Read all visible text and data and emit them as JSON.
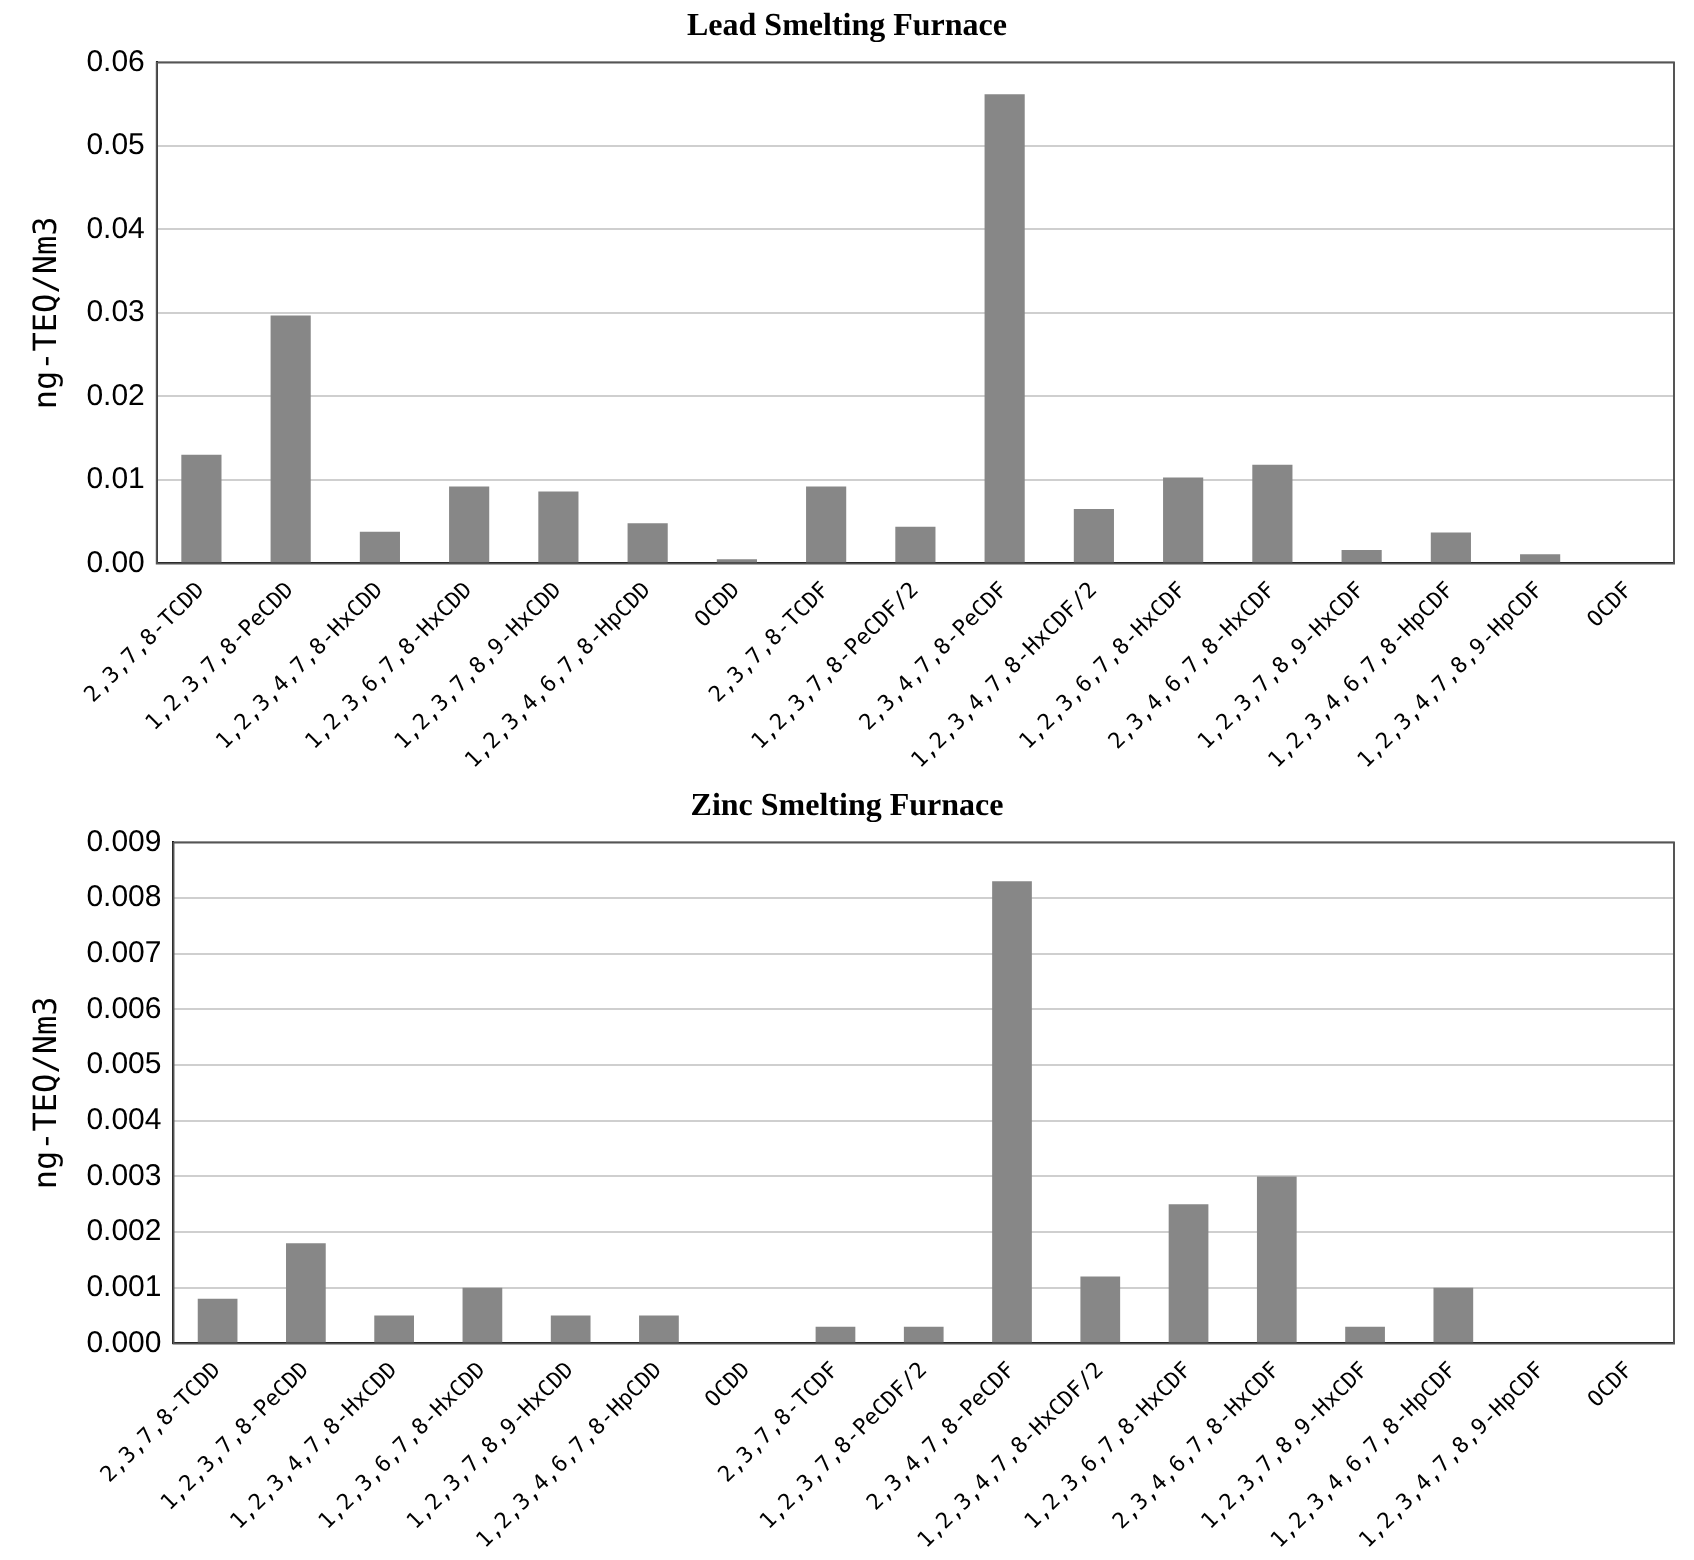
{
  "chart_data": [
    {
      "type": "bar",
      "title": "Lead Smelting Furnace",
      "ylabel": "ng-TEQ/Nm3",
      "categories": [
        "2,3,7,8-TCDD",
        "1,2,3,7,8-PeCDD",
        "1,2,3,4,7,8-HxCDD",
        "1,2,3,6,7,8-HxCDD",
        "1,2,3,7,8,9-HxCDD",
        "1,2,3,4,6,7,8-HpCDD",
        "OCDD",
        "2,3,7,8-TCDF",
        "1,2,3,7,8-PeCDF/2",
        "2,3,4,7,8-PeCDF",
        "1,2,3,4,7,8-HxCDF/2",
        "1,2,3,6,7,8-HxCDF",
        "2,3,4,6,7,8-HxCDF",
        "1,2,3,7,8,9-HxCDF",
        "1,2,3,4,6,7,8-HpCDF",
        "1,2,3,4,7,8,9-HpCDF",
        "OCDF"
      ],
      "values": [
        0.013,
        0.0297,
        0.0038,
        0.0092,
        0.0086,
        0.0048,
        0.0005,
        0.0092,
        0.0044,
        0.0562,
        0.0065,
        0.0103,
        0.0118,
        0.0016,
        0.0037,
        0.0011,
        0
      ],
      "color": "#878787",
      "ylim": [
        0,
        0.06
      ],
      "yticks": [
        {
          "value": 0,
          "label": "0.00"
        },
        {
          "value": 0.01,
          "label": "0.01"
        },
        {
          "value": 0.02,
          "label": "0.02"
        },
        {
          "value": 0.03,
          "label": "0.03"
        },
        {
          "value": 0.04,
          "label": "0.04"
        },
        {
          "value": 0.05,
          "label": "0.05"
        },
        {
          "value": 0.06,
          "label": "0.06"
        }
      ],
      "grid": "y"
    },
    {
      "type": "bar",
      "title": "Zinc Smelting Furnace",
      "ylabel": "ng-TEQ/Nm3",
      "categories": [
        "2,3,7,8-TCDD",
        "1,2,3,7,8-PeCDD",
        "1,2,3,4,7,8-HxCDD",
        "1,2,3,6,7,8-HxCDD",
        "1,2,3,7,8,9-HxCDD",
        "1,2,3,4,6,7,8-HpCDD",
        "OCDD",
        "2,3,7,8-TCDF",
        "1,2,3,7,8-PeCDF/2",
        "2,3,4,7,8-PeCDF",
        "1,2,3,4,7,8-HxCDF/2",
        "1,2,3,6,7,8-HxCDF",
        "2,3,4,6,7,8-HxCDF",
        "1,2,3,7,8,9-HxCDF",
        "1,2,3,4,6,7,8-HpCDF",
        "1,2,3,4,7,8,9-HpCDF",
        "OCDF"
      ],
      "values": [
        0.0008,
        0.0018,
        0.0005,
        0.001,
        0.0005,
        0.0005,
        0,
        0.0003,
        0.0003,
        0.0083,
        0.0012,
        0.0025,
        0.003,
        0.0003,
        0.001,
        0,
        0
      ],
      "color": "#878787",
      "ylim": [
        0,
        0.009
      ],
      "yticks": [
        {
          "value": 0,
          "label": "0.000"
        },
        {
          "value": 0.001,
          "label": "0.001"
        },
        {
          "value": 0.002,
          "label": "0.002"
        },
        {
          "value": 0.003,
          "label": "0.003"
        },
        {
          "value": 0.004,
          "label": "0.004"
        },
        {
          "value": 0.005,
          "label": "0.005"
        },
        {
          "value": 0.006,
          "label": "0.006"
        },
        {
          "value": 0.007,
          "label": "0.007"
        },
        {
          "value": 0.008,
          "label": "0.008"
        },
        {
          "value": 0.009,
          "label": "0.009"
        }
      ],
      "grid": "y"
    }
  ]
}
